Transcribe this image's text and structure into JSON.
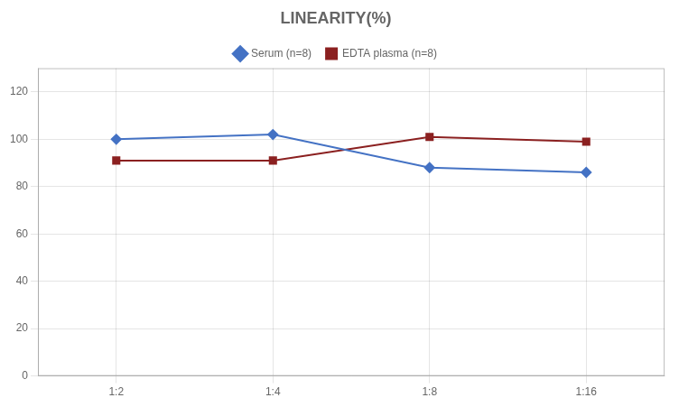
{
  "chart_data": {
    "type": "line",
    "title": "LINEARITY(%)",
    "categories": [
      "1:2",
      "1:4",
      "1:8",
      "1:16"
    ],
    "series": [
      {
        "name": "Serum (n=8)",
        "color": "#4472C4",
        "values": [
          100,
          102,
          88,
          86
        ],
        "marker": "diamond"
      },
      {
        "name": "EDTA plasma (n=8)",
        "color": "#8B2020",
        "values": [
          91,
          91,
          101,
          99
        ],
        "marker": "square"
      }
    ],
    "ylim": [
      0,
      130
    ],
    "yticks": [
      0,
      20,
      40,
      60,
      80,
      100,
      120
    ],
    "grid": true,
    "legend": "top"
  }
}
